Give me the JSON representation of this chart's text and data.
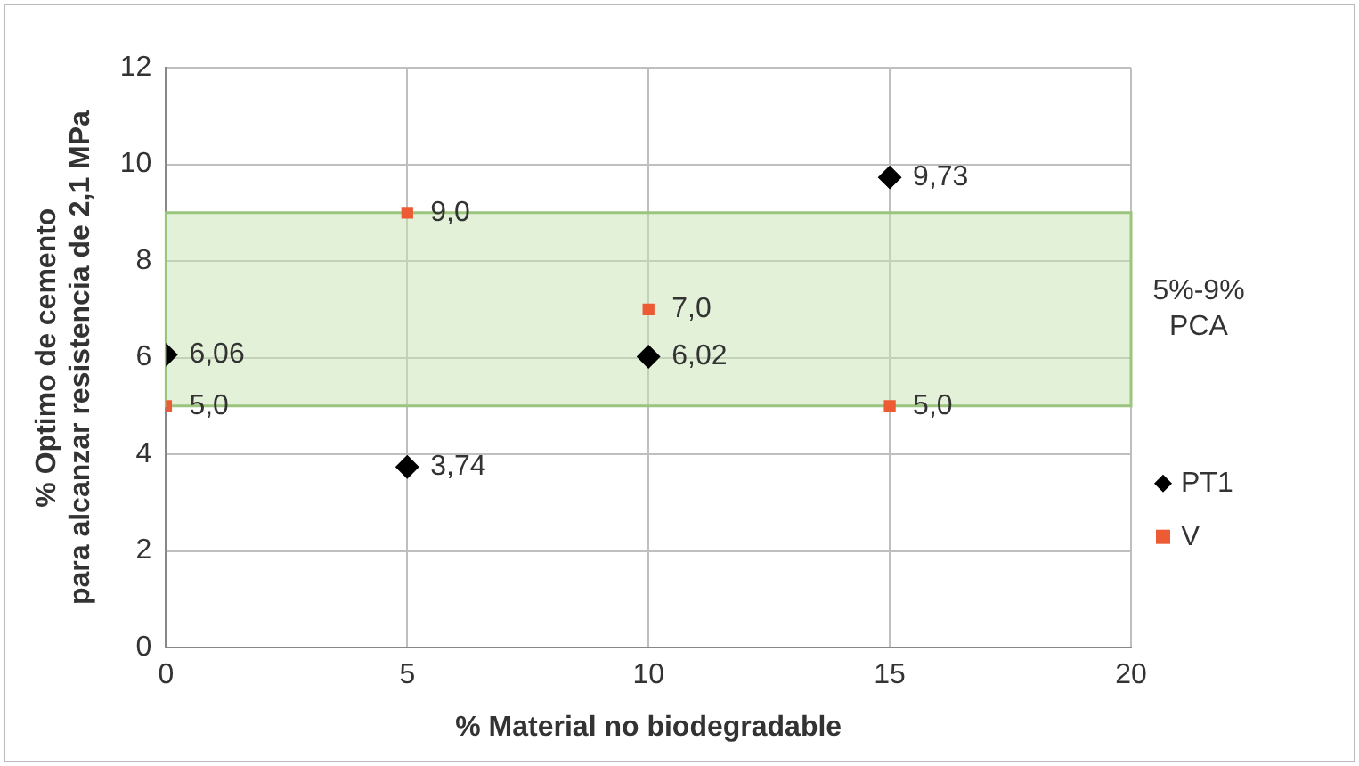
{
  "chart_data": {
    "type": "scatter",
    "xlabel": "% Material no biodegradable",
    "ylabel": "% Optimo de cemento para alcanzar resistencia de 2,1 MPa",
    "xlim": [
      0,
      20
    ],
    "xticks": [
      0,
      5,
      10,
      15,
      20
    ],
    "ylim": [
      0,
      12
    ],
    "yticks": [
      0,
      2,
      4,
      6,
      8,
      10,
      12
    ],
    "grid": true,
    "legend": "right",
    "series": [
      {
        "name": "PT1",
        "color": "#000000",
        "marker": "diamond",
        "x": [
          0,
          5,
          10,
          15
        ],
        "values": [
          6.06,
          3.74,
          6.02,
          9.73
        ],
        "value_labels": [
          "6,06",
          "3,74",
          "6,02",
          "9,73"
        ]
      },
      {
        "name": "V",
        "color": "#ed5b34",
        "marker": "square",
        "x": [
          0,
          5,
          10,
          15
        ],
        "values": [
          5.0,
          9.0,
          7.0,
          5.0
        ],
        "value_labels": [
          "5,0",
          "9,0",
          "7,0",
          "5,0"
        ]
      }
    ],
    "bands": [
      {
        "axis": "y",
        "from": 5,
        "to": 9,
        "label": "5%-9% PCA",
        "color": "#c9e3b4"
      }
    ]
  }
}
